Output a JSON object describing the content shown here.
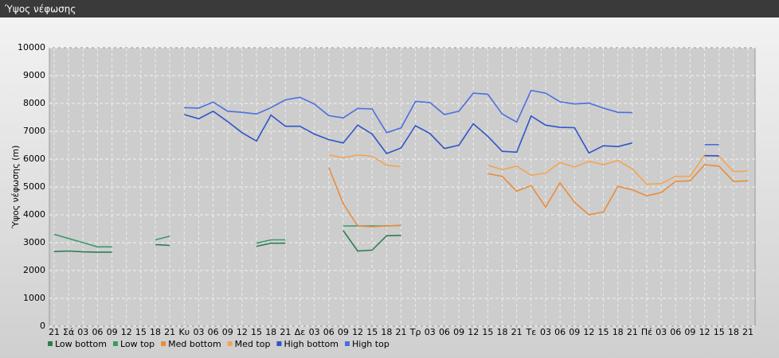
{
  "header": {
    "title": "Ύψος νέφωσης"
  },
  "chart_data": {
    "type": "line",
    "ylabel": "Ύψος νέφωσης (m)",
    "categories": [
      "21",
      "Σά",
      "03",
      "06",
      "09",
      "12",
      "15",
      "18",
      "21",
      "Κυ",
      "03",
      "06",
      "09",
      "12",
      "15",
      "18",
      "21",
      "Δε",
      "03",
      "06",
      "09",
      "12",
      "15",
      "18",
      "21",
      "Τρ",
      "03",
      "06",
      "09",
      "12",
      "15",
      "18",
      "21",
      "Τε",
      "03",
      "06",
      "09",
      "12",
      "15",
      "18",
      "21",
      "Πέ",
      "03",
      "06",
      "09",
      "12",
      "15",
      "18",
      "21"
    ],
    "ylim": [
      0,
      10000
    ],
    "yticks": [
      0,
      1000,
      2000,
      3000,
      4000,
      5000,
      6000,
      7000,
      8000,
      9000,
      10000
    ],
    "grid": true,
    "legend": "bottom-left",
    "series": [
      {
        "name": "Low bottom",
        "color": "#2e7d52",
        "values": [
          2680,
          2700,
          2670,
          2660,
          2660,
          null,
          null,
          2930,
          2900,
          null,
          null,
          null,
          null,
          null,
          2870,
          2980,
          2980,
          null,
          null,
          null,
          3430,
          2700,
          2730,
          3250,
          3260,
          null,
          null,
          null,
          null,
          null,
          null,
          null,
          null,
          null,
          null,
          null,
          null,
          null,
          null,
          null,
          null,
          null,
          null,
          null,
          null,
          null,
          null,
          null,
          null
        ]
      },
      {
        "name": "Low top",
        "color": "#3a9a6a",
        "values": [
          3300,
          3150,
          3000,
          2850,
          2850,
          null,
          null,
          3100,
          3230,
          null,
          null,
          null,
          null,
          null,
          2980,
          3100,
          3100,
          null,
          null,
          null,
          3600,
          3600,
          3600,
          3600,
          3620,
          null,
          null,
          null,
          null,
          null,
          null,
          null,
          null,
          null,
          null,
          null,
          null,
          null,
          null,
          null,
          null,
          null,
          null,
          null,
          null,
          null,
          null,
          null,
          null
        ]
      },
      {
        "name": "Med bottom",
        "color": "#e88d3a",
        "values": [
          null,
          null,
          null,
          null,
          null,
          null,
          null,
          null,
          null,
          null,
          null,
          null,
          null,
          null,
          null,
          null,
          null,
          null,
          null,
          5700,
          4400,
          3600,
          3570,
          3600,
          3620,
          null,
          null,
          null,
          null,
          null,
          5480,
          5380,
          4850,
          5050,
          4280,
          5150,
          4450,
          4000,
          4100,
          5020,
          4900,
          4680,
          4800,
          5200,
          5220,
          5800,
          5750,
          5200,
          5220
        ]
      },
      {
        "name": "Med top",
        "color": "#f2a455",
        "values": [
          null,
          null,
          null,
          null,
          null,
          null,
          null,
          null,
          null,
          null,
          null,
          null,
          null,
          null,
          null,
          null,
          null,
          null,
          null,
          6150,
          6050,
          6150,
          6100,
          5780,
          5730,
          null,
          null,
          null,
          null,
          null,
          5780,
          5620,
          5750,
          5420,
          5500,
          5880,
          5720,
          5920,
          5800,
          5950,
          5650,
          5100,
          5120,
          5380,
          5380,
          6150,
          6100,
          5550,
          5570
        ]
      },
      {
        "name": "High bottom",
        "color": "#2f55c8",
        "values": [
          null,
          null,
          null,
          null,
          null,
          null,
          null,
          null,
          null,
          7600,
          7450,
          7720,
          7350,
          6950,
          6650,
          7580,
          7180,
          7180,
          6900,
          6700,
          6580,
          7220,
          6900,
          6200,
          6400,
          7200,
          6920,
          6380,
          6500,
          7270,
          6820,
          6280,
          6250,
          7550,
          7220,
          7140,
          7130,
          6220,
          6480,
          6450,
          6580,
          null,
          null,
          null,
          null,
          6120,
          6120,
          null,
          null
        ]
      },
      {
        "name": "High top",
        "color": "#4a6fe0",
        "values": [
          null,
          null,
          null,
          null,
          null,
          null,
          null,
          null,
          null,
          7850,
          7830,
          8050,
          7720,
          7680,
          7620,
          7850,
          8130,
          8220,
          7980,
          7560,
          7480,
          7820,
          7800,
          6950,
          7120,
          8070,
          8030,
          7600,
          7720,
          8370,
          8330,
          7620,
          7330,
          8470,
          8370,
          8060,
          7980,
          8010,
          7830,
          7680,
          7670,
          null,
          null,
          null,
          null,
          6520,
          6520,
          null,
          null
        ]
      }
    ]
  }
}
